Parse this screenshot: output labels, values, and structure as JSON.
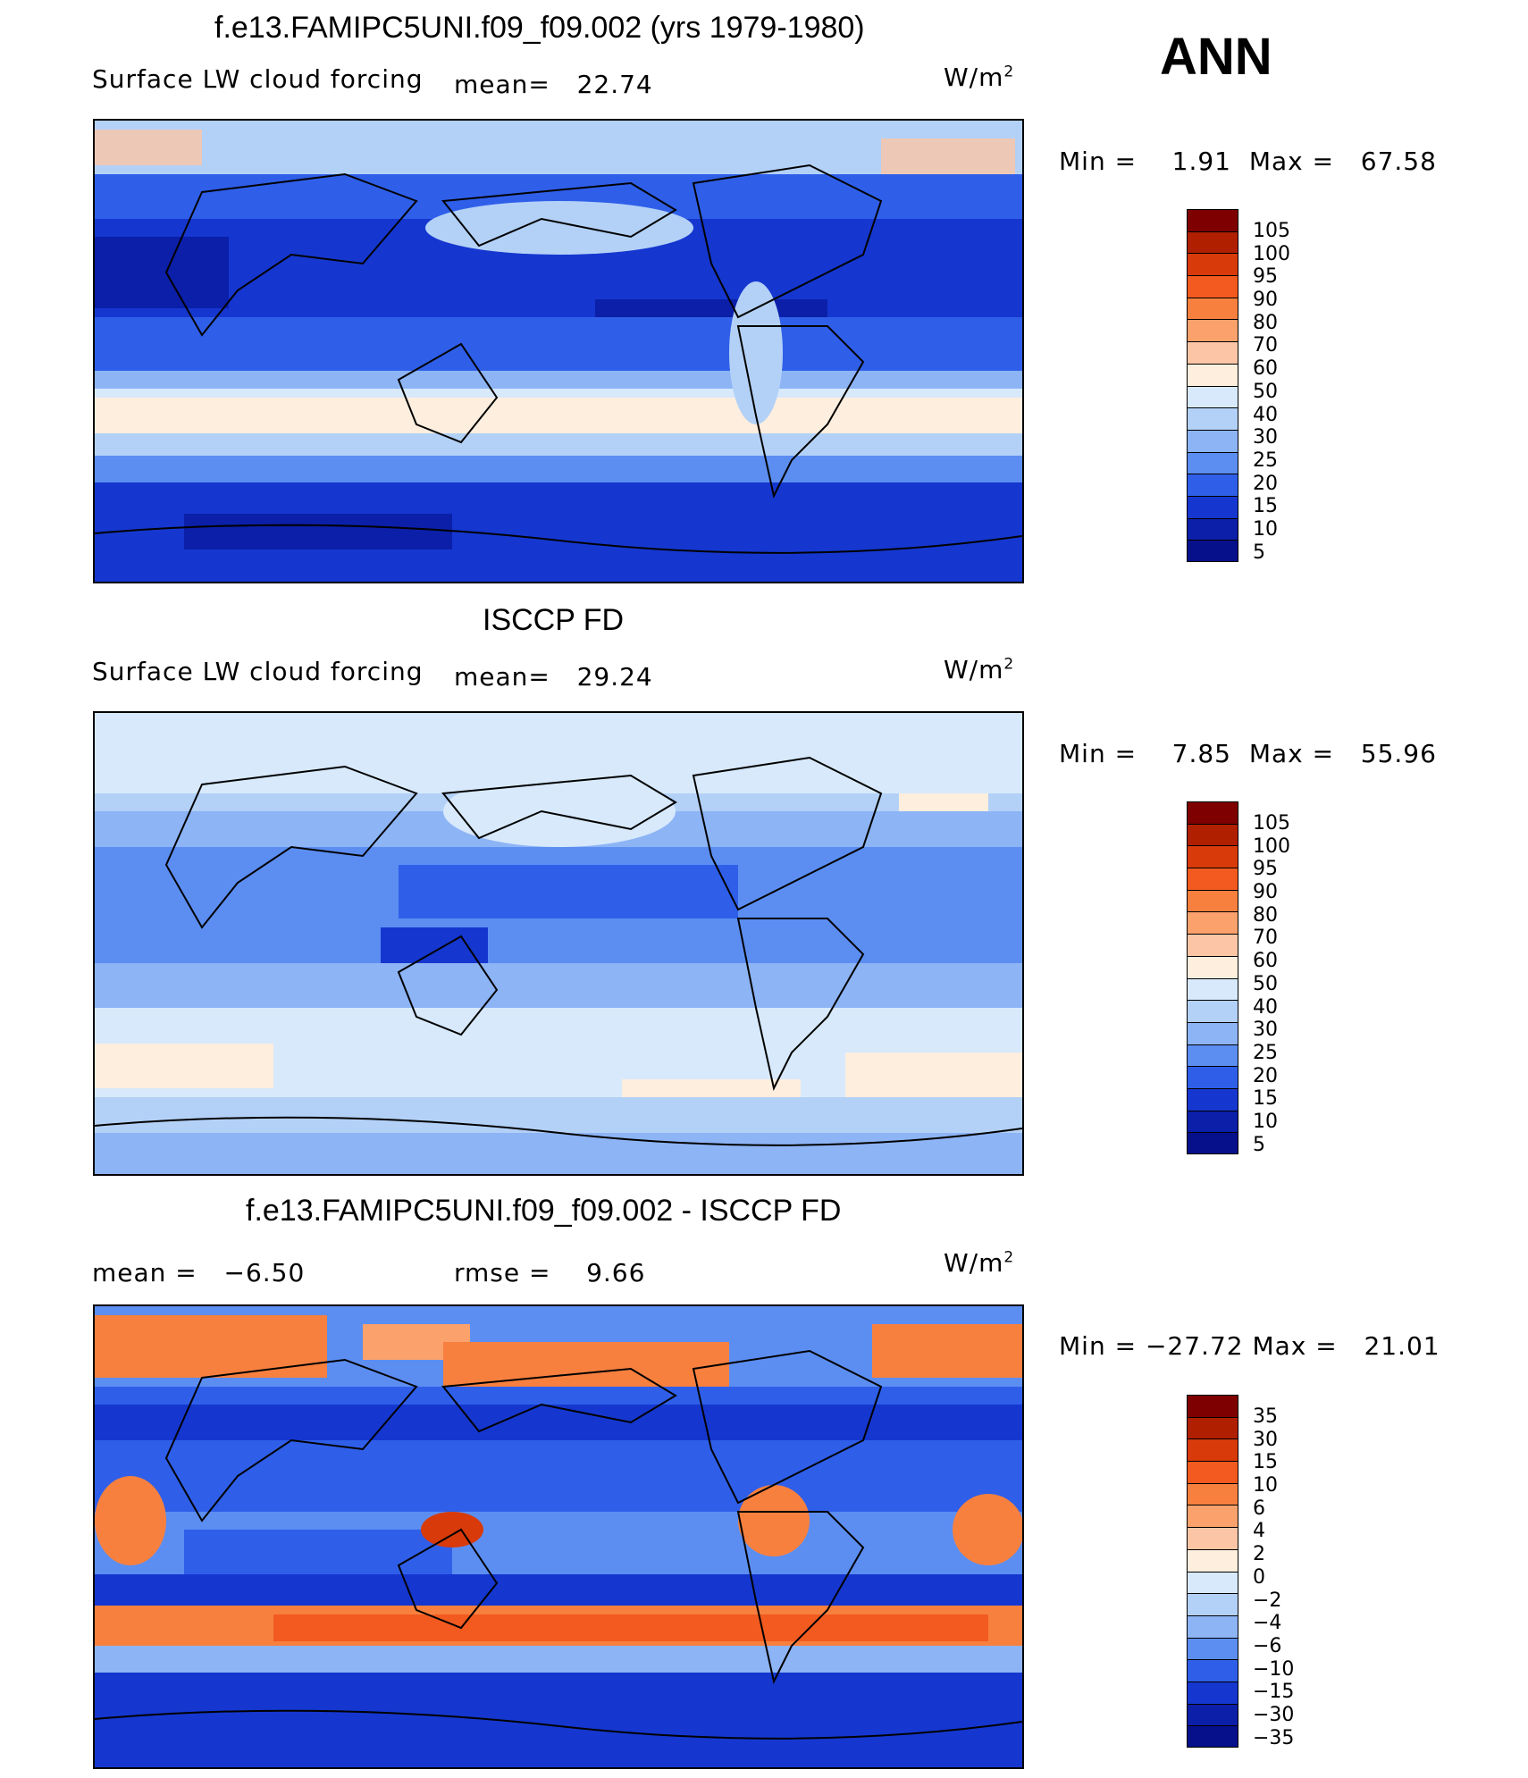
{
  "season": "ANN",
  "units_base": "W/m",
  "units_exp": "2",
  "panels": [
    {
      "title": "f.e13.FAMIPC5UNI.f09_f09.002 (yrs 1979-1980)",
      "variable": "Surface LW cloud forcing",
      "stat1_label": "mean=",
      "stat1_value": "22.74",
      "min_label": "Min =",
      "min_value": "1.91",
      "max_label": "Max =",
      "max_value": "67.58",
      "scale": "abs",
      "colorbar_labels": [
        "105",
        "100",
        "95",
        "90",
        "80",
        "70",
        "60",
        "50",
        "40",
        "30",
        "25",
        "20",
        "15",
        "10",
        "5"
      ]
    },
    {
      "title": "ISCCP FD",
      "variable": "Surface LW cloud forcing",
      "stat1_label": "mean=",
      "stat1_value": "29.24",
      "min_label": "Min =",
      "min_value": "7.85",
      "max_label": "Max =",
      "max_value": "55.96",
      "scale": "abs",
      "colorbar_labels": [
        "105",
        "100",
        "95",
        "90",
        "80",
        "70",
        "60",
        "50",
        "40",
        "30",
        "25",
        "20",
        "15",
        "10",
        "5"
      ]
    },
    {
      "title": "f.e13.FAMIPC5UNI.f09_f09.002 - ISCCP FD",
      "stat1_label": "mean =",
      "stat1_value": "−6.50",
      "stat2_label": "rmse =",
      "stat2_value": "9.66",
      "min_label": "Min =",
      "min_value": "−27.72",
      "max_label": "Max =",
      "max_value": "21.01",
      "scale": "diff",
      "colorbar_labels": [
        "35",
        "30",
        "15",
        "10",
        "6",
        "4",
        "2",
        "0",
        "−2",
        "−4",
        "−6",
        "−10",
        "−15",
        "−30",
        "−35"
      ]
    }
  ],
  "colors": {
    "scale": [
      "#7f0000",
      "#b01f00",
      "#d83a0a",
      "#f25a1f",
      "#f7803f",
      "#fba16c",
      "#fcc6a6",
      "#feeede",
      "#d7e9fb",
      "#b3d1f7",
      "#8db4f5",
      "#5c8ef2",
      "#2f5fe9",
      "#1537cf",
      "#0b1fa8",
      "#06108a"
    ]
  }
}
